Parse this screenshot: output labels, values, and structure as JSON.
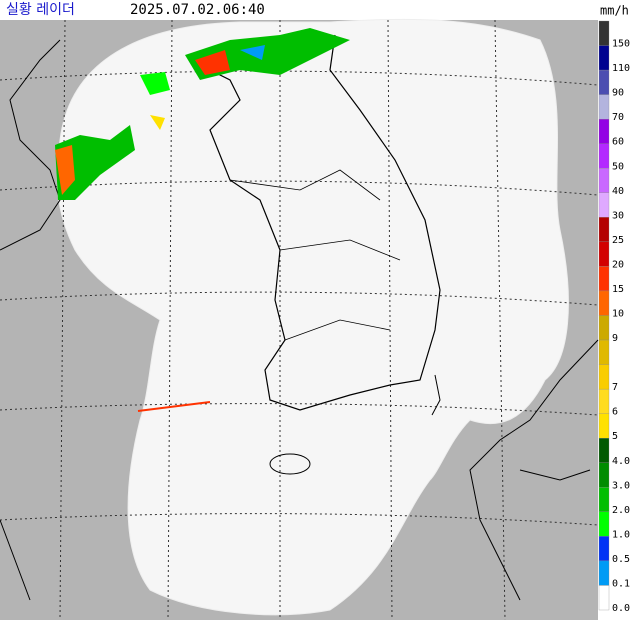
{
  "header": {
    "title": "실황 레이더",
    "time": "2025.07.02.06:40"
  },
  "legend": {
    "unit": "mm/h",
    "items": [
      {
        "label": "150",
        "color": "#333333"
      },
      {
        "label": "110",
        "color": "#000390"
      },
      {
        "label": "90",
        "color": "#4c4eb1"
      },
      {
        "label": "70",
        "color": "#b3b4de"
      },
      {
        "label": "60",
        "color": "#9300e4"
      },
      {
        "label": "50",
        "color": "#b329ff"
      },
      {
        "label": "40",
        "color": "#c969ff"
      },
      {
        "label": "30",
        "color": "#dfa9ff"
      },
      {
        "label": "25",
        "color": "#b40000"
      },
      {
        "label": "20",
        "color": "#d20000"
      },
      {
        "label": "15",
        "color": "#ff3200"
      },
      {
        "label": "10",
        "color": "#ff6600"
      },
      {
        "label": "9",
        "color": "#ccaa00"
      },
      {
        "label": null,
        "color": "#e0b900"
      },
      {
        "label": "7",
        "color": "#f9cd00"
      },
      {
        "label": "6",
        "color": "#ffdc1f"
      },
      {
        "label": "5",
        "color": "#ffe100"
      },
      {
        "label": "4.0",
        "color": "#005a00"
      },
      {
        "label": "3.0",
        "color": "#008c00"
      },
      {
        "label": "2.0",
        "color": "#00be00"
      },
      {
        "label": "1.0",
        "color": "#00ff00"
      },
      {
        "label": "0.5",
        "color": "#0033f5"
      },
      {
        "label": "0.1",
        "color": "#009bf5"
      },
      {
        "label": "0.0",
        "color": "#ffffff"
      }
    ]
  }
}
